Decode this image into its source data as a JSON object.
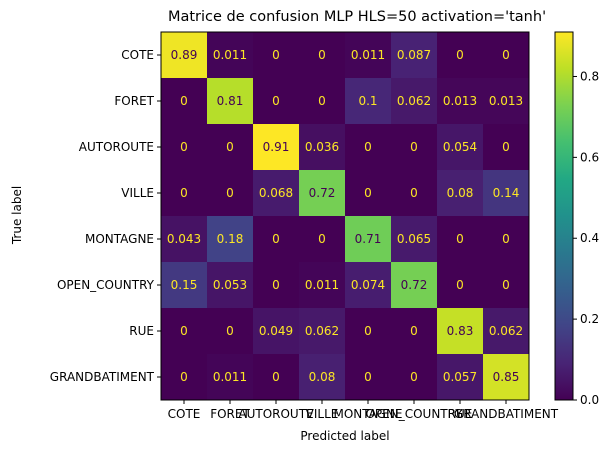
{
  "chart_data": {
    "type": "heatmap",
    "title": "Matrice de confusion MLP HLS=50 activation='tanh'",
    "xlabel": "Predicted label",
    "ylabel": "True label",
    "x_categories": [
      "COTE",
      "FORET",
      "AUTOROUTE",
      "VILLE",
      "MONTAGNE",
      "OPEN_COUNTRY",
      "RUE",
      "GRANDBATIMENT"
    ],
    "y_categories": [
      "COTE",
      "FORET",
      "AUTOROUTE",
      "VILLE",
      "MONTAGNE",
      "OPEN_COUNTRY",
      "RUE",
      "GRANDBATIMENT"
    ],
    "values": [
      [
        0.89,
        0.011,
        0,
        0,
        0.011,
        0.087,
        0,
        0
      ],
      [
        0,
        0.81,
        0,
        0,
        0.1,
        0.062,
        0.013,
        0.013
      ],
      [
        0,
        0,
        0.91,
        0.036,
        0,
        0,
        0.054,
        0
      ],
      [
        0,
        0,
        0.068,
        0.72,
        0,
        0,
        0.08,
        0.14
      ],
      [
        0.043,
        0.18,
        0,
        0,
        0.71,
        0.065,
        0,
        0
      ],
      [
        0.15,
        0.053,
        0,
        0.011,
        0.074,
        0.72,
        0,
        0
      ],
      [
        0,
        0,
        0.049,
        0.062,
        0,
        0,
        0.83,
        0.062
      ],
      [
        0,
        0.011,
        0,
        0.08,
        0,
        0,
        0.057,
        0.85
      ]
    ],
    "colormap": "viridis",
    "colorbar": {
      "range": [
        0,
        0.91
      ],
      "ticks": [
        "0.0",
        "0.2",
        "0.4",
        "0.6",
        "0.8"
      ],
      "tick_values": [
        0,
        0.2,
        0.4,
        0.6,
        0.8
      ]
    }
  }
}
